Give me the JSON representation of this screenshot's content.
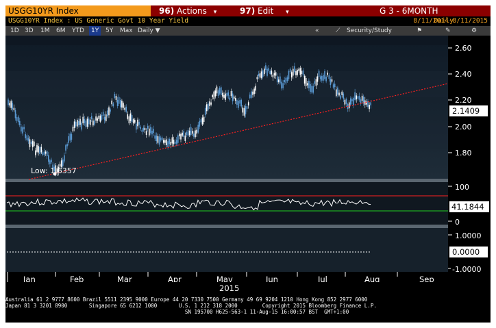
{
  "header": {
    "ticker": "USGG10YR Index",
    "actions_num": "96)",
    "actions_label": "Actions",
    "edit_num": "97)",
    "edit_label": "Edit",
    "view_title": "G 3 - 6MONTH"
  },
  "subheader": {
    "security_desc": "USGG10YR Index : US Generic Govt 10 Year Yield",
    "frequency": "Daily",
    "date_range": "8/11/2014-8/11/2015"
  },
  "range_tabs": [
    "1D",
    "3D",
    "1M",
    "6M",
    "YTD",
    "1Y",
    "5Y",
    "Max"
  ],
  "active_tab": "1Y",
  "period_select": "Daily ▼",
  "toolbar_right": {
    "collapse": "«",
    "security_study": "Security/Study"
  },
  "panels": {
    "price": {
      "axis_ticks": [
        "2.60",
        "2.40",
        "2.20",
        "2.00",
        "1.80"
      ],
      "last_value": "2.1409",
      "low_label": "Low: 1.6357"
    },
    "rsi": {
      "axis_ticks": [
        "100",
        "0"
      ],
      "last_value": "41.1844"
    },
    "third": {
      "axis_ticks": [
        "1.0000",
        "-1.0000"
      ],
      "last_value": "0.0000"
    }
  },
  "x_axis": {
    "months": [
      "Jan",
      "Feb",
      "Mar",
      "Apr",
      "May",
      "Jun",
      "Jul",
      "Aug",
      "Sep"
    ],
    "year_label": "2015"
  },
  "footer": {
    "line1": "Australia 61 2 9777 8600 Brazil 5511 2395 9000 Europe 44 20 7330 7500 Germany 49 69 9204 1210 Hong Kong 852 2977 6000",
    "line2": "Japan 81 3 3201 8900       Singapore 65 6212 1000       U.S. 1 212 318 2000        Copyright 2015 Bloomberg Finance L.P.",
    "line3": "                                                          SN 195700 H625-563-1 11-Aug-15 16:00:57 BST  GMT+1:00"
  },
  "colors": {
    "header_bg": "#8b0000",
    "ticker_bg": "#f39a1c",
    "active_tab": "#1b3a8c",
    "candle_up": "#ffffff",
    "candle_down": "#5b9bd5",
    "trendline": "#ff2020",
    "rsi_upper": "#ff2020",
    "rsi_lower": "#20d020"
  }
}
